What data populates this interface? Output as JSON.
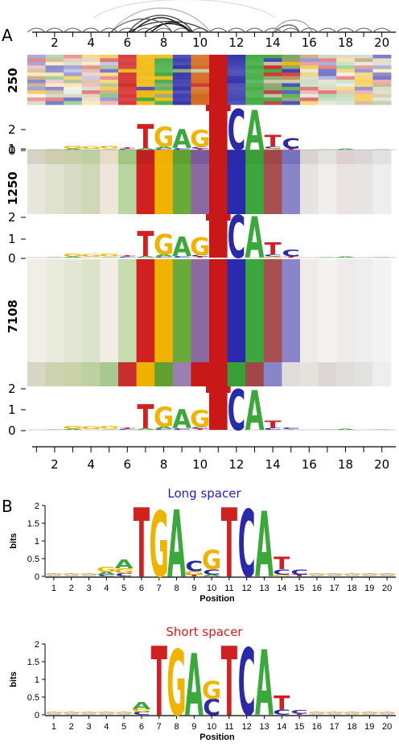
{
  "panels": {
    "a": {
      "letter": "A"
    },
    "b": {
      "letter": "B"
    }
  },
  "panel_a": {
    "positions": [
      1,
      2,
      3,
      4,
      5,
      6,
      7,
      8,
      9,
      10,
      11,
      12,
      13,
      14,
      15,
      16,
      17,
      18,
      19,
      20
    ],
    "tick_labels": [
      "2",
      "4",
      "6",
      "8",
      "10",
      "12",
      "14",
      "16",
      "18",
      "20"
    ],
    "rows": [
      {
        "label": "250",
        "yticks": [
          "2",
          "1",
          "0"
        ]
      },
      {
        "label": "1250",
        "yticks": [
          "2",
          "1",
          "0"
        ]
      },
      {
        "label": "7108",
        "yticks": [
          "2",
          "1",
          "0"
        ]
      }
    ],
    "logo_letters": [
      "T",
      "G",
      "A",
      "G",
      "T",
      "C",
      "A",
      "T",
      "C"
    ]
  },
  "panel_b": {
    "charts": [
      {
        "title": "Long spacer",
        "title_color": "#1f1fcc",
        "ylabel": "bits",
        "xlabel": "Position",
        "yticks": [
          "2",
          "1.5",
          "1",
          "0.5",
          "0"
        ],
        "x_labels": [
          "1",
          "2",
          "3",
          "4",
          "5",
          "6",
          "7",
          "8",
          "9",
          "10",
          "11",
          "12",
          "13",
          "14",
          "15",
          "16",
          "17",
          "18",
          "19",
          "20"
        ]
      },
      {
        "title": "Short spacer",
        "title_color": "#e01818",
        "ylabel": "bits",
        "xlabel": "Position",
        "yticks": [
          "2",
          "1.5",
          "1",
          "0.5",
          "0"
        ],
        "x_labels": [
          "1",
          "2",
          "3",
          "4",
          "5",
          "6",
          "7",
          "8",
          "9",
          "10",
          "11",
          "12",
          "13",
          "14",
          "15",
          "16",
          "17",
          "18",
          "19",
          "20"
        ]
      }
    ]
  },
  "colors": {
    "A": "#3aa83a",
    "C": "#2a2aa8",
    "G": "#f0b400",
    "T": "#d02020"
  }
}
